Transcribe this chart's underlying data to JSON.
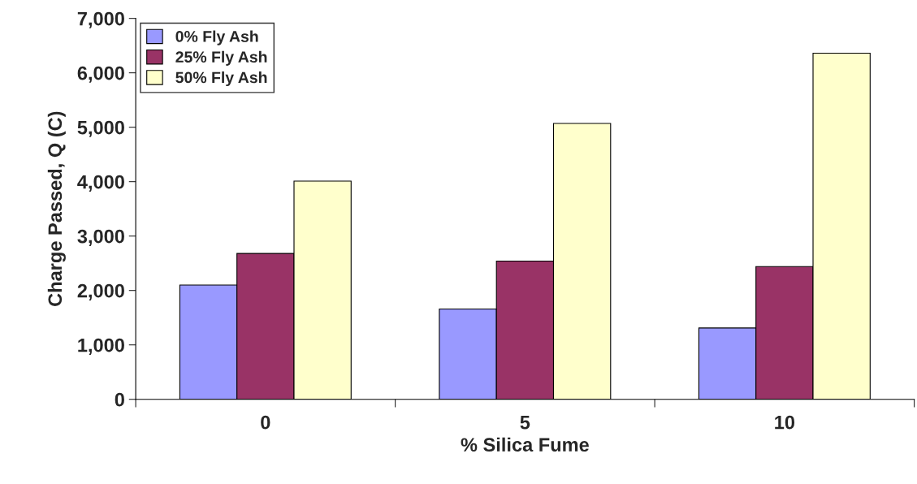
{
  "chart_data": {
    "type": "bar",
    "xlabel": "% Silica Fume",
    "ylabel": "Charge Passed, Q (C)",
    "categories": [
      "0",
      "5",
      "10"
    ],
    "series": [
      {
        "name": "0% Fly Ash",
        "color": "#9999ff",
        "values": [
          2100,
          1660,
          1310
        ]
      },
      {
        "name": "25% Fly Ash",
        "color": "#993366",
        "values": [
          2680,
          2540,
          2440
        ]
      },
      {
        "name": "50% Fly Ash",
        "color": "#ffffcc",
        "values": [
          4010,
          5070,
          6360
        ]
      }
    ],
    "ylim": [
      0,
      7000
    ],
    "yticks": [
      {
        "value": 0,
        "label": "0"
      },
      {
        "value": 1000,
        "label": "1,000"
      },
      {
        "value": 2000,
        "label": "2,000"
      },
      {
        "value": 3000,
        "label": "3,000"
      },
      {
        "value": 4000,
        "label": "4,000"
      },
      {
        "value": 5000,
        "label": "5,000"
      },
      {
        "value": 6000,
        "label": "6,000"
      },
      {
        "value": 7000,
        "label": "7,000"
      }
    ],
    "grid": false,
    "legend": "top left"
  }
}
